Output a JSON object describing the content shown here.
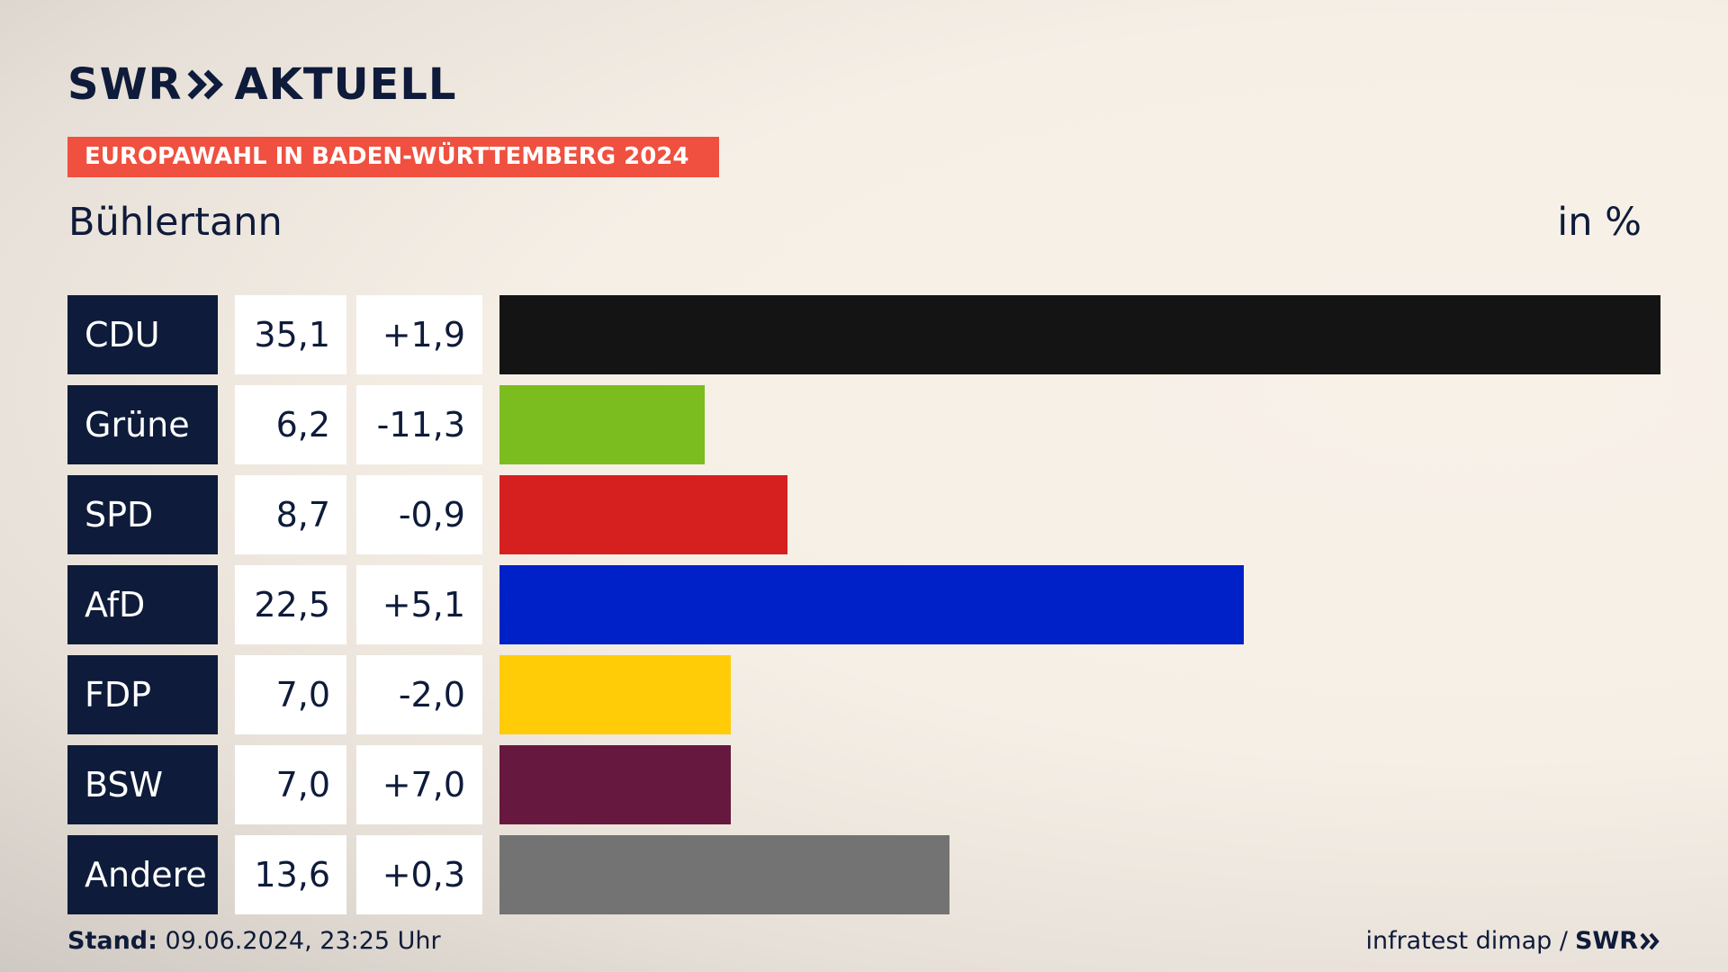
{
  "brand": {
    "logo_left": "SWR",
    "logo_right": "AKTUELL"
  },
  "banner": "EUROPAWAHL IN BADEN-WÜRTTEMBERG 2024",
  "region": "Bühlertann",
  "unit": "in %",
  "footer": {
    "stand_label": "Stand:",
    "stand_value": "09.06.2024, 23:25 Uhr",
    "source": "infratest dimap /",
    "source_brand": "SWR"
  },
  "chart_data": {
    "type": "bar",
    "orientation": "horizontal",
    "categories": [
      "CDU",
      "Grüne",
      "SPD",
      "AfD",
      "FDP",
      "BSW",
      "Andere"
    ],
    "values": [
      35.1,
      6.2,
      8.7,
      22.5,
      7.0,
      7.0,
      13.6
    ],
    "value_labels": [
      "35,1",
      "6,2",
      "8,7",
      "22,5",
      "7,0",
      "7,0",
      "13,6"
    ],
    "diff_labels": [
      "+1,9",
      "-11,3",
      "-0,9",
      "+5,1",
      "-2,0",
      "+7,0",
      "+0,3"
    ],
    "colors": [
      "#141414",
      "#7bbd1e",
      "#d62020",
      "#0021c8",
      "#ffcc07",
      "#67183f",
      "#737373"
    ]
  }
}
